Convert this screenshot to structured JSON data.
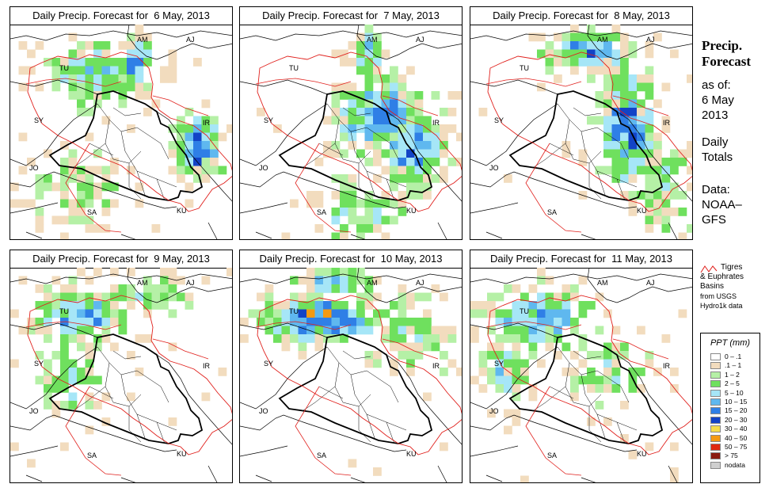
{
  "panels": [
    {
      "title": "Daily Precip. Forecast for  6 May, 2013",
      "seed": 11,
      "profile": "p6"
    },
    {
      "title": "Daily Precip. Forecast for  7 May, 2013",
      "seed": 23,
      "profile": "p7"
    },
    {
      "title": "Daily Precip. Forecast for  8 May, 2013",
      "seed": 37,
      "profile": "p8"
    },
    {
      "title": "Daily Precip. Forecast for  9 May, 2013",
      "seed": 41,
      "profile": "p9"
    },
    {
      "title": "Daily Precip. Forecast for  10 May, 2013",
      "seed": 53,
      "profile": "p10"
    },
    {
      "title": "Daily Precip. Forecast for  11 May, 2013",
      "seed": 67,
      "profile": "p11"
    }
  ],
  "country_labels": [
    "AM",
    "AJ",
    "TU",
    "SY",
    "IR",
    "JO",
    "SA",
    "KU"
  ],
  "sidebar": {
    "title_line1": "Precip.",
    "title_line2": "Forecast",
    "asof_line1": "as of:",
    "asof_line2": "6 May",
    "asof_line3": "2013",
    "daily_line1": "Daily",
    "daily_line2": "Totals",
    "data_line1": "Data:",
    "data_line2": "NOAA–",
    "data_line3": "GFS"
  },
  "basin_legend": {
    "line1": "Tigres",
    "line2": "& Euphrates",
    "line3": "Basins",
    "line4": "from USGS",
    "line5": "Hydro1k data",
    "line_color": "#e0201c"
  },
  "ppt_legend": {
    "title": "PPT (mm)",
    "items": [
      {
        "label": "0 – .1",
        "color": "#ffffff"
      },
      {
        "label": ".1 – 1",
        "color": "#f2dcbe"
      },
      {
        "label": "1 – 2",
        "color": "#b5f0a6"
      },
      {
        "label": "2 – 5",
        "color": "#6fe05e"
      },
      {
        "label": "5 – 10",
        "color": "#a6e6f7"
      },
      {
        "label": "10 – 15",
        "color": "#5fb8ef"
      },
      {
        "label": "15 – 20",
        "color": "#2f7fe6"
      },
      {
        "label": "20 – 30",
        "color": "#1343c6"
      },
      {
        "label": "30 – 40",
        "color": "#f6dc4a"
      },
      {
        "label": "40 – 50",
        "color": "#f49a12"
      },
      {
        "label": "50 – 75",
        "color": "#e02a10"
      },
      {
        "label": "> 75",
        "color": "#8a1a10"
      },
      {
        "label": "nodata",
        "color": "#cfcfcf"
      }
    ]
  }
}
